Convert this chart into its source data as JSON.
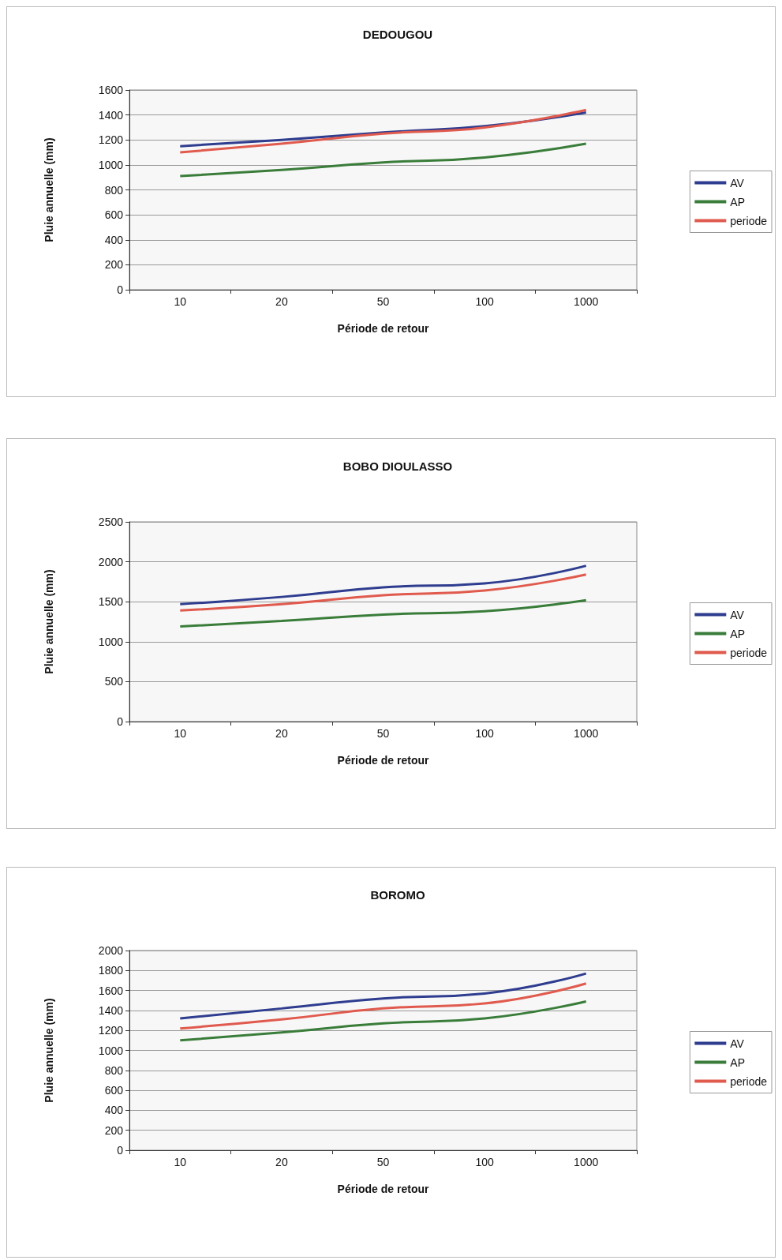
{
  "chart_data": [
    {
      "type": "line",
      "title": "DEDOUGOU",
      "xlabel": "Période de retour",
      "ylabel": "Pluie annuelle (mm)",
      "categories": [
        "10",
        "20",
        "50",
        "100",
        "1000"
      ],
      "ylim": [
        0,
        1600
      ],
      "yticks": [
        0,
        200,
        400,
        600,
        800,
        1000,
        1200,
        1400,
        1600
      ],
      "grid": "y",
      "legend": "right",
      "marker": "none",
      "line_style": "solid",
      "series": [
        {
          "name": "AV",
          "color": "#2e3d8f",
          "values": [
            1150,
            1200,
            1260,
            1310,
            1420
          ]
        },
        {
          "name": "AP",
          "color": "#3a7d3a",
          "values": [
            910,
            960,
            1020,
            1060,
            1170
          ]
        },
        {
          "name": "periode",
          "color": "#e05a4e",
          "values": [
            1100,
            1170,
            1250,
            1300,
            1440
          ]
        }
      ]
    },
    {
      "type": "line",
      "title": "BOBO DIOULASSO",
      "xlabel": "Période de retour",
      "ylabel": "Pluie annuelle (mm)",
      "categories": [
        "10",
        "20",
        "50",
        "100",
        "1000"
      ],
      "ylim": [
        0,
        2500
      ],
      "yticks": [
        0,
        500,
        1000,
        1500,
        2000,
        2500
      ],
      "grid": "y",
      "legend": "right",
      "marker": "none",
      "line_style": "solid",
      "series": [
        {
          "name": "AV",
          "color": "#2e3d8f",
          "values": [
            1470,
            1560,
            1680,
            1730,
            1950
          ]
        },
        {
          "name": "AP",
          "color": "#3a7d3a",
          "values": [
            1190,
            1260,
            1340,
            1380,
            1520
          ]
        },
        {
          "name": "periode",
          "color": "#e05a4e",
          "values": [
            1390,
            1470,
            1580,
            1640,
            1840
          ]
        }
      ]
    },
    {
      "type": "line",
      "title": "BOROMO",
      "xlabel": "Période de retour",
      "ylabel": "Pluie annuelle (mm)",
      "categories": [
        "10",
        "20",
        "50",
        "100",
        "1000"
      ],
      "ylim": [
        0,
        2000
      ],
      "yticks": [
        0,
        200,
        400,
        600,
        800,
        1000,
        1200,
        1400,
        1600,
        1800,
        2000
      ],
      "grid": "y",
      "legend": "right",
      "marker": "none",
      "line_style": "solid",
      "series": [
        {
          "name": "AV",
          "color": "#2e3d8f",
          "values": [
            1320,
            1420,
            1520,
            1570,
            1770
          ]
        },
        {
          "name": "AP",
          "color": "#3a7d3a",
          "values": [
            1100,
            1180,
            1270,
            1320,
            1490
          ]
        },
        {
          "name": "periode",
          "color": "#e05a4e",
          "values": [
            1220,
            1310,
            1420,
            1470,
            1670
          ]
        }
      ]
    }
  ]
}
